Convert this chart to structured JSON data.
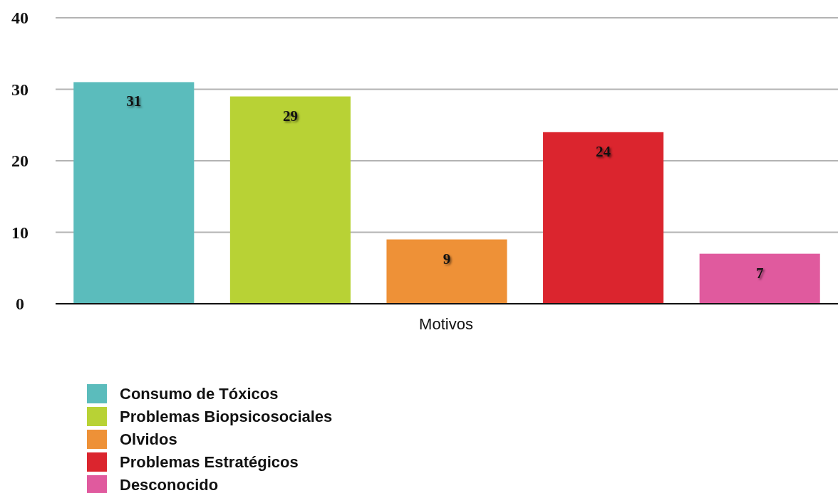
{
  "chart_data": {
    "type": "bar",
    "categories": [
      "Motivos"
    ],
    "series": [
      {
        "name": "Consumo de Tóxicos",
        "color": "#5bbcbc",
        "values": [
          31
        ]
      },
      {
        "name": "Problemas Biopsicosociales",
        "color": "#b8d235",
        "values": [
          29
        ]
      },
      {
        "name": "Olvidos",
        "color": "#ee9137",
        "values": [
          9
        ]
      },
      {
        "name": "Problemas Estratégicos",
        "color": "#db252e",
        "values": [
          24
        ]
      },
      {
        "name": "Desconocido",
        "color": "#e05a9e",
        "values": [
          7
        ]
      }
    ],
    "ylim": [
      0,
      40
    ],
    "yticks": [
      0,
      10,
      20,
      30,
      40
    ],
    "grid": "y",
    "legend": "bottom left",
    "data_labels": true
  }
}
